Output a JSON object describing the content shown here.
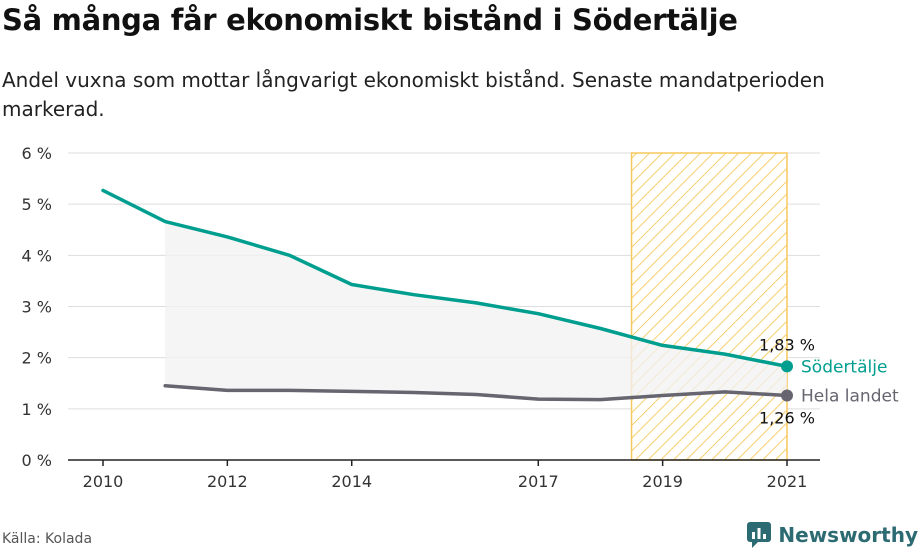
{
  "title": "Så många får ekonomiskt bistånd i Södertälje",
  "subtitle": "Andel vuxna som mottar långvarigt ekonomiskt bistånd. Senaste mandatperioden markerad.",
  "source": "Källa: Kolada",
  "brand": "Newsworthy",
  "colors": {
    "primary": "#009e8f",
    "secondary": "#666570",
    "highlight": "#f5c95e",
    "area": "#f2f2f3",
    "grid": "#dddddd",
    "brand": "#2d6b73"
  },
  "chart_data": {
    "type": "line",
    "ylim": [
      0,
      6
    ],
    "y_ticks": [
      "0 %",
      "1 %",
      "2 %",
      "3 %",
      "4 %",
      "5 %",
      "6 %"
    ],
    "x_ticks": [
      "2010",
      "2012",
      "2014",
      "2017",
      "2019",
      "2021"
    ],
    "xlim": [
      2010,
      2021
    ],
    "highlight_range": [
      2018.5,
      2021
    ],
    "series": [
      {
        "name": "Södertälje",
        "x": [
          2010,
          2011,
          2012,
          2013,
          2014,
          2015,
          2016,
          2017,
          2018,
          2019,
          2020,
          2021
        ],
        "values": [
          5.27,
          4.66,
          4.36,
          4.0,
          3.43,
          3.23,
          3.07,
          2.86,
          2.57,
          2.24,
          2.07,
          1.83
        ],
        "end_label": "1,83 %"
      },
      {
        "name": "Hela landet",
        "x": [
          2011,
          2012,
          2013,
          2014,
          2015,
          2016,
          2017,
          2018,
          2019,
          2020,
          2021
        ],
        "values": [
          1.45,
          1.36,
          1.36,
          1.34,
          1.32,
          1.28,
          1.19,
          1.18,
          1.26,
          1.33,
          1.26
        ],
        "end_label": "1,26 %"
      }
    ]
  }
}
